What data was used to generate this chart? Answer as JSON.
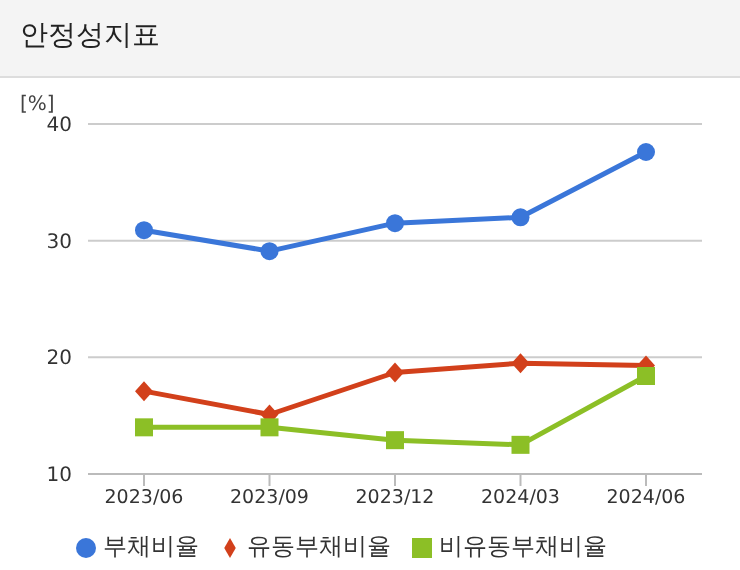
{
  "chart_data": {
    "type": "line",
    "title": "안정성지표",
    "ylabel": "[%]",
    "categories": [
      "2023/06",
      "2023/09",
      "2023/12",
      "2024/03",
      "2024/06"
    ],
    "series": [
      {
        "name": "부채비율",
        "color": "#3a76d9",
        "marker": "circle",
        "values": [
          30.9,
          29.1,
          31.5,
          32.0,
          37.6
        ]
      },
      {
        "name": "유동부채비율",
        "color": "#d2401b",
        "marker": "diamond",
        "values": [
          17.1,
          15.1,
          18.7,
          19.5,
          19.3
        ]
      },
      {
        "name": "비유동부채비율",
        "color": "#8cbf26",
        "marker": "square",
        "values": [
          14.0,
          14.0,
          12.9,
          12.5,
          18.4
        ]
      }
    ],
    "ylim": [
      10,
      40
    ],
    "yticks": [
      10,
      20,
      30,
      40
    ],
    "grid": "y",
    "legend": "bottom",
    "line_style": "solid"
  }
}
